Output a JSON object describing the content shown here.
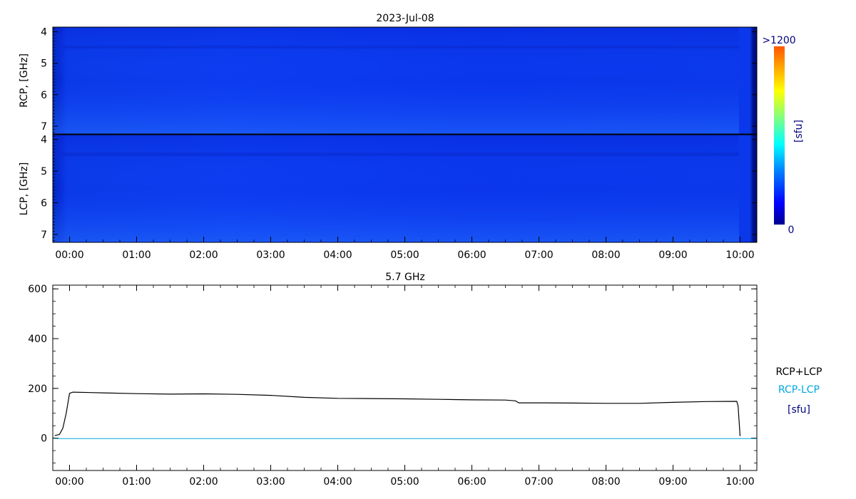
{
  "chart_data": [
    {
      "type": "heatmap",
      "title": "2023-Jul-08",
      "panels": [
        {
          "name": "rcp",
          "ylabel": "RCP, [GHz]"
        },
        {
          "name": "lcp",
          "ylabel": "LCP, [GHz]"
        }
      ],
      "ylim": [
        3.85,
        7.25
      ],
      "yticks": [
        4,
        5,
        6,
        7
      ],
      "xlim": [
        -0.25,
        10.25
      ],
      "xticks_hours": [
        0,
        1,
        2,
        3,
        4,
        5,
        6,
        7,
        8,
        9,
        10
      ],
      "xtick_labels": [
        "00:00",
        "01:00",
        "02:00",
        "03:00",
        "04:00",
        "05:00",
        "06:00",
        "07:00",
        "08:00",
        "09:00",
        "10:00"
      ],
      "colorbar": {
        "unit": "[sfu]",
        "max_label": ">1200",
        "min_label": "0",
        "min": 0,
        "max": 1200
      },
      "colors": {
        "low": "#000090",
        "mid": "#1050ff",
        "high": "#ff5000"
      }
    },
    {
      "type": "line",
      "title": "5.7 GHz",
      "xlim": [
        -0.25,
        10.25
      ],
      "ylim": [
        -130,
        615
      ],
      "yticks": [
        0,
        200,
        400,
        600
      ],
      "ytick_labels": [
        "0",
        "200",
        "400",
        "600"
      ],
      "xticks_hours": [
        0,
        1,
        2,
        3,
        4,
        5,
        6,
        7,
        8,
        9,
        10
      ],
      "xtick_labels": [
        "00:00",
        "01:00",
        "02:00",
        "03:00",
        "04:00",
        "05:00",
        "06:00",
        "07:00",
        "08:00",
        "09:00",
        "10:00"
      ],
      "legend": {
        "entries": [
          "RCP+LCP",
          "RCP-LCP"
        ],
        "unit": "[sfu]",
        "placement": "right"
      },
      "series": [
        {
          "name": "RCP+LCP",
          "color": "#000000",
          "x": [
            -0.22,
            -0.15,
            -0.1,
            -0.05,
            0.0,
            0.05,
            0.5,
            1.0,
            1.5,
            2.0,
            2.5,
            3.0,
            3.5,
            4.0,
            4.5,
            5.0,
            5.5,
            6.0,
            6.5,
            6.65,
            6.7,
            7.0,
            7.5,
            8.0,
            8.5,
            9.0,
            9.5,
            9.95,
            9.97,
            10.0
          ],
          "y": [
            10,
            15,
            40,
            100,
            180,
            185,
            182,
            179,
            177,
            178,
            176,
            172,
            164,
            160,
            159,
            158,
            156,
            154,
            153,
            150,
            142,
            142,
            141,
            140,
            140,
            144,
            147,
            148,
            130,
            8
          ]
        },
        {
          "name": "RCP-LCP",
          "color": "#00a8e0",
          "x": [
            -0.22,
            10.25
          ],
          "y": [
            -2,
            -2
          ]
        }
      ]
    }
  ],
  "legend_text": {
    "sum": "RCP+LCP",
    "diff": "RCP-LCP",
    "unit": "[sfu]"
  }
}
